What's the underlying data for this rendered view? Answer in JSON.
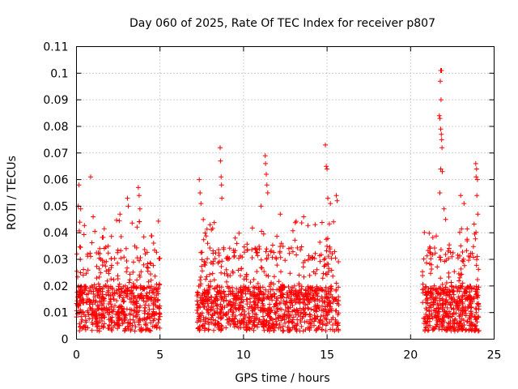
{
  "chart_data": {
    "type": "scatter",
    "title": "Day 060 of 2025, Rate Of TEC Index for receiver p807",
    "xlabel": "GPS time / hours",
    "ylabel": "ROTI / TECUs",
    "xlim": [
      0,
      25
    ],
    "ylim": [
      0,
      0.11
    ],
    "x_ticks": [
      "0",
      "5",
      "10",
      "15",
      "20",
      "25"
    ],
    "y_ticks": [
      "0",
      "0.01",
      "0.02",
      "0.03",
      "0.04",
      "0.05",
      "0.06",
      "0.07",
      "0.08",
      "0.09",
      "0.1",
      "0.11"
    ],
    "grid": true,
    "marker": "+",
    "color": "#ff0000",
    "series": [
      {
        "values_description_omitted": true,
        "segments": [
          {
            "x_start": 0.0,
            "x_end": 5.0,
            "count": 650,
            "seed": 11
          },
          {
            "x_start": 7.2,
            "x_end": 15.7,
            "count": 1100,
            "seed": 23
          },
          {
            "x_start": 20.7,
            "x_end": 24.1,
            "count": 500,
            "seed": 37
          }
        ],
        "highlights": [
          {
            "x": 0.1,
            "y": 0.05
          },
          {
            "x": 0.15,
            "y": 0.058
          },
          {
            "x": 0.2,
            "y": 0.044
          },
          {
            "x": 0.25,
            "y": 0.049
          },
          {
            "x": 0.85,
            "y": 0.061
          },
          {
            "x": 1.0,
            "y": 0.046
          },
          {
            "x": 2.6,
            "y": 0.047
          },
          {
            "x": 3.05,
            "y": 0.053
          },
          {
            "x": 3.1,
            "y": 0.05
          },
          {
            "x": 3.7,
            "y": 0.057
          },
          {
            "x": 3.75,
            "y": 0.054
          },
          {
            "x": 3.8,
            "y": 0.049
          },
          {
            "x": 7.35,
            "y": 0.06
          },
          {
            "x": 7.4,
            "y": 0.055
          },
          {
            "x": 7.45,
            "y": 0.051
          },
          {
            "x": 8.0,
            "y": 0.043
          },
          {
            "x": 8.6,
            "y": 0.072
          },
          {
            "x": 8.62,
            "y": 0.067
          },
          {
            "x": 8.66,
            "y": 0.061
          },
          {
            "x": 8.7,
            "y": 0.053
          },
          {
            "x": 8.68,
            "y": 0.058
          },
          {
            "x": 9.5,
            "y": 0.038
          },
          {
            "x": 9.6,
            "y": 0.036
          },
          {
            "x": 11.05,
            "y": 0.05
          },
          {
            "x": 11.3,
            "y": 0.069
          },
          {
            "x": 11.32,
            "y": 0.066
          },
          {
            "x": 11.36,
            "y": 0.062
          },
          {
            "x": 11.4,
            "y": 0.058
          },
          {
            "x": 11.45,
            "y": 0.055
          },
          {
            "x": 12.2,
            "y": 0.047
          },
          {
            "x": 13.6,
            "y": 0.046
          },
          {
            "x": 14.9,
            "y": 0.073
          },
          {
            "x": 14.95,
            "y": 0.065
          },
          {
            "x": 15.0,
            "y": 0.064
          },
          {
            "x": 15.05,
            "y": 0.053
          },
          {
            "x": 15.2,
            "y": 0.051
          },
          {
            "x": 15.55,
            "y": 0.054
          },
          {
            "x": 15.6,
            "y": 0.052
          },
          {
            "x": 21.8,
            "y": 0.101
          },
          {
            "x": 21.85,
            "y": 0.101
          },
          {
            "x": 21.78,
            "y": 0.097
          },
          {
            "x": 21.82,
            "y": 0.09
          },
          {
            "x": 21.72,
            "y": 0.084
          },
          {
            "x": 21.76,
            "y": 0.083
          },
          {
            "x": 21.8,
            "y": 0.079
          },
          {
            "x": 21.84,
            "y": 0.077
          },
          {
            "x": 21.86,
            "y": 0.075
          },
          {
            "x": 21.88,
            "y": 0.072
          },
          {
            "x": 21.8,
            "y": 0.064
          },
          {
            "x": 21.9,
            "y": 0.063
          },
          {
            "x": 21.75,
            "y": 0.055
          },
          {
            "x": 22.0,
            "y": 0.049
          },
          {
            "x": 22.1,
            "y": 0.045
          },
          {
            "x": 23.0,
            "y": 0.054
          },
          {
            "x": 23.2,
            "y": 0.051
          },
          {
            "x": 23.9,
            "y": 0.066
          },
          {
            "x": 23.95,
            "y": 0.064
          },
          {
            "x": 23.92,
            "y": 0.061
          },
          {
            "x": 24.0,
            "y": 0.06
          },
          {
            "x": 23.97,
            "y": 0.054
          },
          {
            "x": 24.02,
            "y": 0.047
          }
        ]
      }
    ]
  }
}
